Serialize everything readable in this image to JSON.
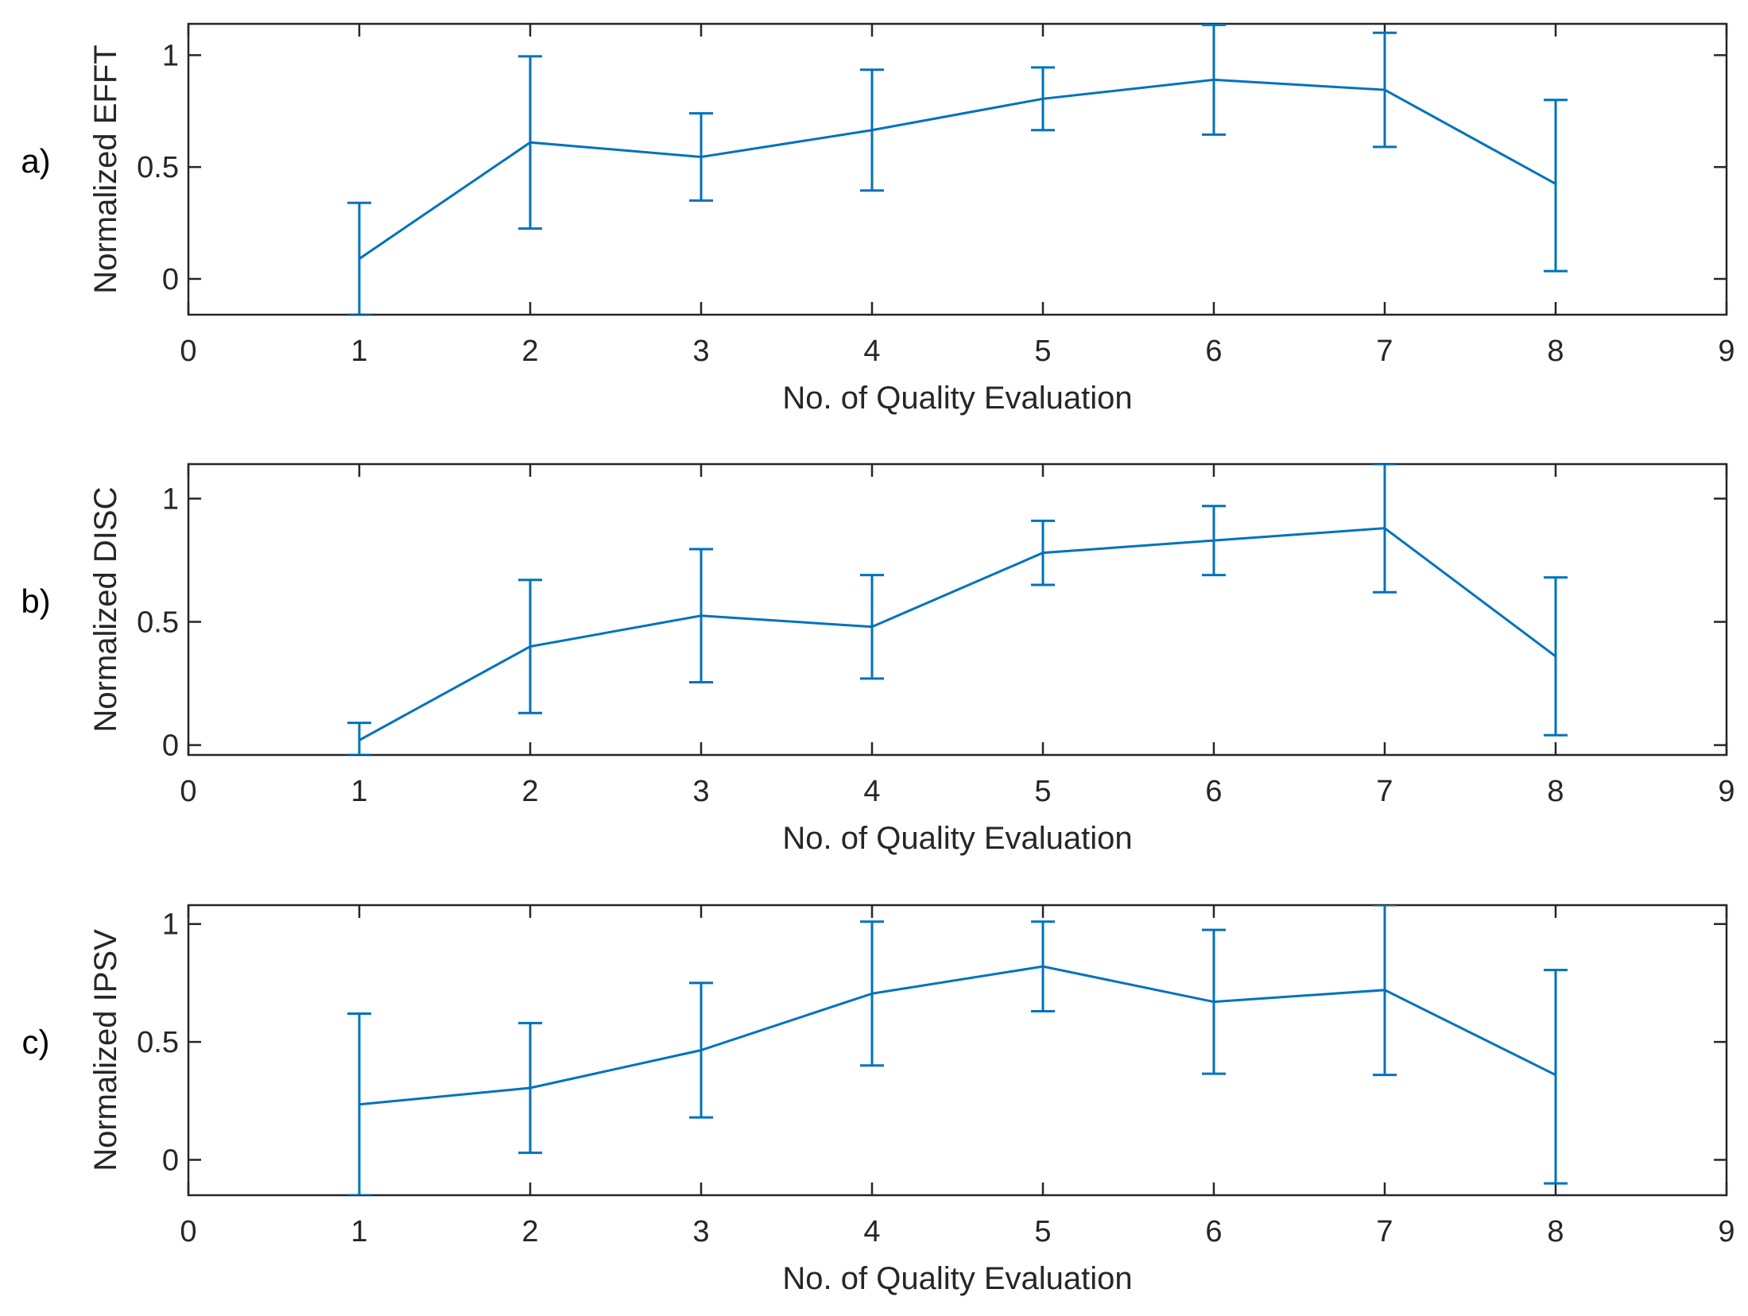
{
  "chart_data": [
    {
      "type": "line",
      "panel_label": "a)",
      "title": "",
      "xlabel": "No. of Quality Evaluation",
      "ylabel": "Normalized EFFT",
      "xlim": [
        0,
        9
      ],
      "ylim": [
        -0.16,
        1.14
      ],
      "xticks": [
        0,
        1,
        2,
        3,
        4,
        5,
        6,
        7,
        8,
        9
      ],
      "yticks": [
        0,
        0.5,
        1
      ],
      "ytick_labels": [
        "0",
        "0.5",
        "1"
      ],
      "color": "#0072BD",
      "x": [
        1,
        2,
        3,
        4,
        5,
        6,
        7,
        8
      ],
      "y": [
        0.09,
        0.61,
        0.545,
        0.665,
        0.805,
        0.89,
        0.845,
        0.425
      ],
      "error_low": [
        0.25,
        0.385,
        0.195,
        0.27,
        0.14,
        0.245,
        0.255,
        0.39
      ],
      "error_high": [
        0.25,
        0.385,
        0.195,
        0.27,
        0.14,
        0.245,
        0.255,
        0.375
      ]
    },
    {
      "type": "line",
      "panel_label": "b)",
      "title": "",
      "xlabel": "No. of Quality Evaluation",
      "ylabel": "Normalized DISC",
      "xlim": [
        0,
        9
      ],
      "ylim": [
        -0.04,
        1.14
      ],
      "xticks": [
        0,
        1,
        2,
        3,
        4,
        5,
        6,
        7,
        8,
        9
      ],
      "yticks": [
        0,
        0.5,
        1
      ],
      "ytick_labels": [
        "0",
        "0.5",
        "1"
      ],
      "color": "#0072BD",
      "x": [
        1,
        2,
        3,
        4,
        5,
        6,
        7,
        8
      ],
      "y": [
        0.02,
        0.4,
        0.525,
        0.48,
        0.78,
        0.83,
        0.88,
        0.36
      ],
      "error_low": [
        0.06,
        0.27,
        0.27,
        0.21,
        0.13,
        0.14,
        0.26,
        0.32
      ],
      "error_high": [
        0.07,
        0.27,
        0.27,
        0.21,
        0.13,
        0.14,
        0.26,
        0.32
      ]
    },
    {
      "type": "line",
      "panel_label": "c)",
      "title": "",
      "xlabel": "No. of Quality Evaluation",
      "ylabel": "Normalized IPSV",
      "xlim": [
        0,
        9
      ],
      "ylim": [
        -0.15,
        1.08
      ],
      "xticks": [
        0,
        1,
        2,
        3,
        4,
        5,
        6,
        7,
        8,
        9
      ],
      "yticks": [
        0,
        0.5,
        1
      ],
      "ytick_labels": [
        "0",
        "0.5",
        "1"
      ],
      "color": "#0072BD",
      "x": [
        1,
        2,
        3,
        4,
        5,
        6,
        7,
        8
      ],
      "y": [
        0.235,
        0.305,
        0.465,
        0.705,
        0.82,
        0.67,
        0.72,
        0.36
      ],
      "error_low": [
        0.385,
        0.275,
        0.285,
        0.305,
        0.19,
        0.305,
        0.36,
        0.46
      ],
      "error_high": [
        0.385,
        0.275,
        0.285,
        0.305,
        0.19,
        0.305,
        0.36,
        0.445
      ]
    }
  ]
}
